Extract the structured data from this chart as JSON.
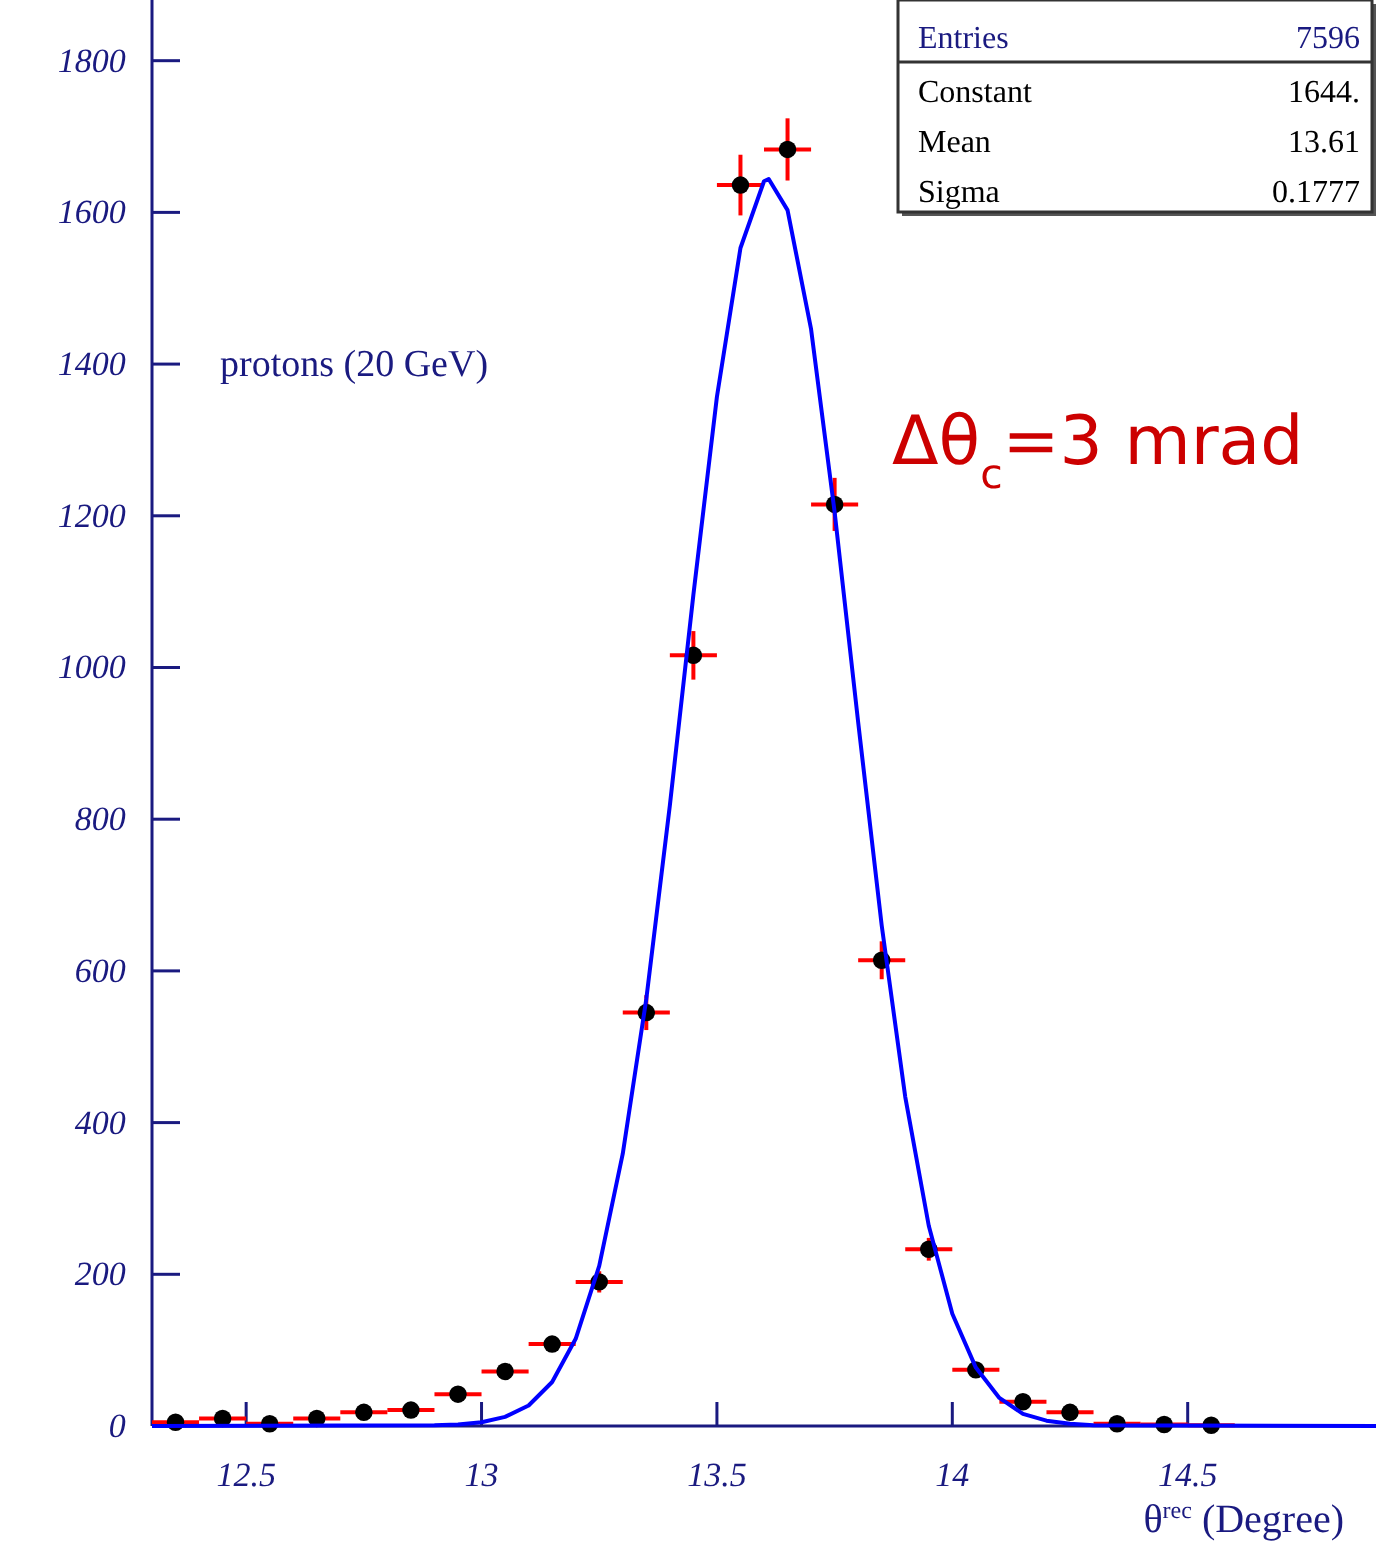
{
  "chart_data": {
    "type": "scatter",
    "xlabel": "θ$^{rec}$ (Degree)",
    "xlim": [
      12.3,
      14.9
    ],
    "xticks": [
      12.5,
      13,
      13.5,
      14,
      14.5
    ],
    "ylim": [
      0,
      1880
    ],
    "yticks": [
      0,
      200,
      400,
      600,
      800,
      1000,
      1200,
      1400,
      1600,
      1800
    ],
    "grid": false,
    "annotations": [
      "protons (20 GeV)",
      "Δθ$_{c}$=3 mrad",
      "Entries",
      "7596",
      "Constant",
      "1644.",
      "Mean",
      "13.61",
      "Sigma",
      "0.1777"
    ],
    "series": [
      {
        "color": "#000000",
        "marker": "circle",
        "x": [
          12.35,
          12.45,
          12.55,
          12.65,
          12.75,
          12.85,
          12.95,
          13.05,
          13.15,
          13.25,
          13.35,
          13.45,
          13.55,
          13.65,
          13.75,
          13.85,
          13.95,
          14.05,
          14.15,
          14.25,
          14.35,
          14.45,
          14.55
        ],
        "values": [
          5,
          10,
          3,
          10,
          18,
          21,
          42,
          72,
          108,
          190,
          545,
          1016,
          1636,
          1683,
          1215,
          614,
          233,
          74,
          32,
          18,
          3,
          2,
          1
        ],
        "errors": [
          null,
          null,
          null,
          null,
          null,
          null,
          null,
          null,
          null,
          14,
          23,
          32,
          40,
          41,
          35,
          25,
          15,
          null,
          null,
          null,
          null,
          null,
          null
        ],
        "xerrors": [
          0.05,
          0.05,
          0.05,
          0.05,
          0.05,
          0.05,
          0.05,
          0.05,
          0.05,
          0.05,
          0.05,
          0.05,
          0.05,
          0.05,
          0.05,
          0.05,
          0.05,
          0.05,
          0.05,
          0.05,
          0.05,
          0.05,
          0.05
        ]
      },
      {
        "type": "line",
        "color": "#0000ff",
        "marker": "none",
        "line_style": "solid",
        "x": [
          12.3,
          12.9,
          12.95,
          13.0,
          13.05,
          13.1,
          13.15,
          13.2,
          13.25,
          13.3,
          13.35,
          13.4,
          13.45,
          13.5,
          13.55,
          13.6,
          13.61,
          13.65,
          13.7,
          13.75,
          13.8,
          13.85,
          13.9,
          13.95,
          14.0,
          14.05,
          14.1,
          14.15,
          14.2,
          14.25,
          14.3,
          14.9
        ],
        "values": [
          0,
          1,
          2,
          5,
          12,
          27,
          58,
          115,
          211,
          359,
          563,
          818,
          1096,
          1357,
          1553,
          1641,
          1644,
          1603,
          1446,
          1205,
          928,
          660,
          434,
          264,
          148,
          77,
          37,
          16,
          7,
          3,
          1,
          0
        ]
      }
    ]
  }
}
